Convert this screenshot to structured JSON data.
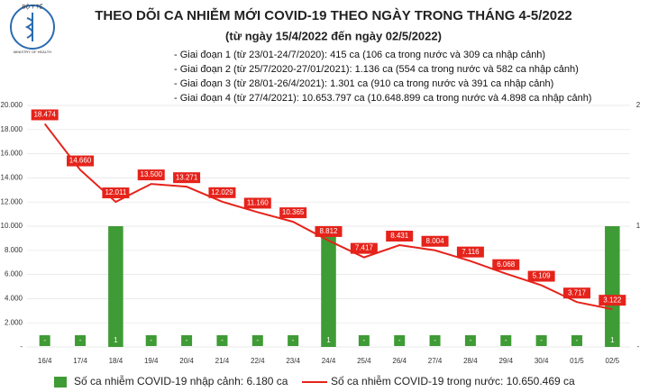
{
  "logo": {
    "top": "BỘ Y TẾ",
    "bottom": "MINISTRY OF HEALTH"
  },
  "chart_data": {
    "type": "bar-line",
    "title": "THEO DÕI CA NHIỄM MỚI COVID-19 THEO NGÀY TRONG THÁNG 4-5/2022",
    "subtitle": "(từ ngày 15/4/2022 đến ngày 02/5/2022)",
    "annotations": [
      "- Giai đoạn 1 (từ 23/01-24/7/2020): 415 ca (106 ca trong nước và 309 ca nhập cảnh)",
      "- Giai đoạn 2 (từ 25/7/2020-27/01/2021): 1.136 ca (554 ca trong nước và 582 ca nhập cảnh)",
      "- Giai đoạn 3 (từ 28/01-26/4/2021): 1.301 ca (910 ca trong nước và 391 ca nhập cảnh)",
      "- Giai đoạn 4 (từ 27/4/2021): 10.653.797 ca (10.648.899 ca trong nước và 4.898 ca nhập cảnh)"
    ],
    "categories": [
      "16/4",
      "17/4",
      "18/4",
      "19/4",
      "20/4",
      "21/4",
      "22/4",
      "23/4",
      "24/4",
      "25/4",
      "26/4",
      "27/4",
      "28/4",
      "29/4",
      "30/4",
      "01/5",
      "02/5"
    ],
    "series": [
      {
        "name": "Số ca nhiễm COVID-19 nhập cảnh: 6.180 ca",
        "color": "#3f9b35",
        "type": "bar",
        "axis": "y2",
        "values": [
          0,
          0,
          1,
          0,
          0,
          0,
          0,
          0,
          1,
          0,
          0,
          0,
          0,
          0,
          0,
          0,
          1
        ],
        "value_labels": [
          "-",
          "-",
          "1",
          "-",
          "-",
          "-",
          "-",
          "-",
          "1",
          "-",
          "-",
          "-",
          "-",
          "-",
          "-",
          "-",
          "1"
        ]
      },
      {
        "name": "Số ca nhiễm COVID-19 trong nước: 10.650.469 ca",
        "color": "#e5231b",
        "type": "line",
        "values": [
          18474,
          14660,
          12011,
          13500,
          13271,
          12029,
          11160,
          10365,
          8812,
          7417,
          8431,
          8004,
          7116,
          6068,
          5109,
          3717,
          3122
        ],
        "value_labels": [
          "18.474",
          "14.660",
          "12.011",
          "13.500",
          "13.271",
          "12.029",
          "11.160",
          "10.365",
          "8.812",
          "7.417",
          "8.431",
          "8.004",
          "7.116",
          "6.068",
          "5.109",
          "3.717",
          "3.122"
        ]
      }
    ],
    "ylim": [
      0,
      20000
    ],
    "yticks": [
      {
        "value": 0,
        "label": "-"
      },
      {
        "value": 2000,
        "label": "2.000"
      },
      {
        "value": 4000,
        "label": "4.000"
      },
      {
        "value": 6000,
        "label": "6.000"
      },
      {
        "value": 8000,
        "label": "8.000"
      },
      {
        "value": 10000,
        "label": "10.000"
      },
      {
        "value": 12000,
        "label": "12.000"
      },
      {
        "value": 14000,
        "label": "14.000"
      },
      {
        "value": 16000,
        "label": "16.000"
      },
      {
        "value": 18000,
        "label": "18.000"
      },
      {
        "value": 20000,
        "label": "20.000"
      }
    ],
    "y2lim": [
      0,
      2
    ],
    "y2ticks": [
      {
        "value": 0,
        "label": "-"
      },
      1,
      2
    ],
    "grid": true
  }
}
